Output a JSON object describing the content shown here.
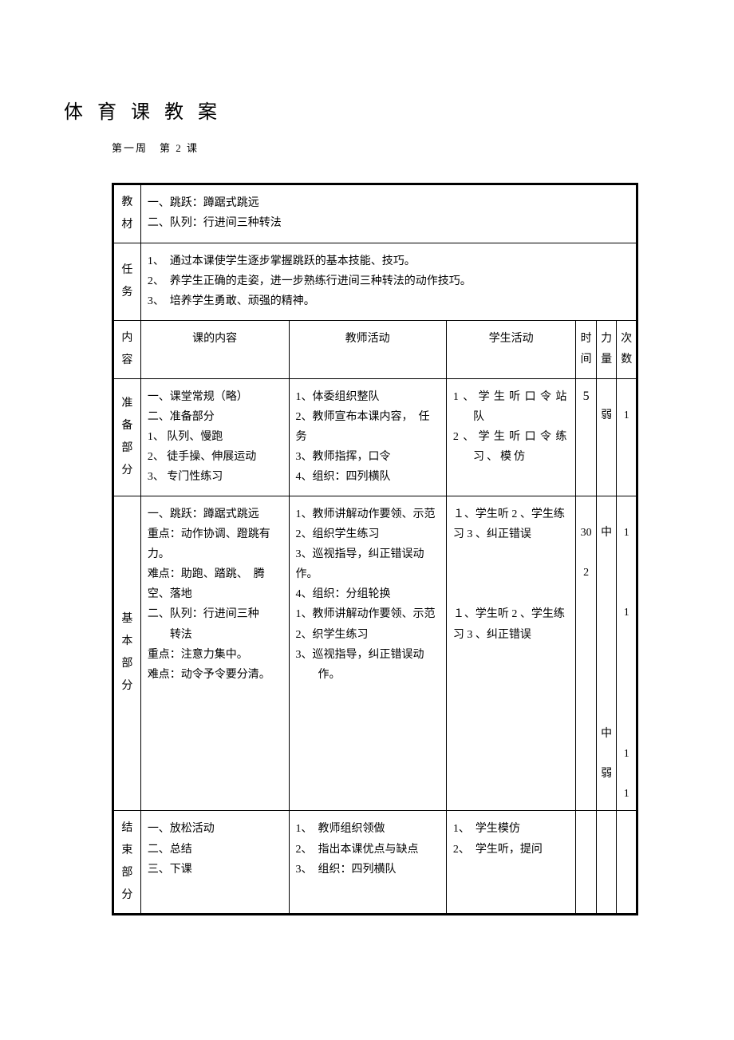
{
  "title": "体育课教案",
  "subtitle": "第一周　第 2 课",
  "rows": {
    "material": {
      "label": "教材",
      "content": "一、跳跃：蹲踞式跳远\n二、队列：行进间三种转法"
    },
    "task": {
      "label": "任务",
      "items": [
        "1、　通过本课使学生逐步掌握跳跃的基本技能、技巧。",
        "2、　养学生正确的走姿，进一步熟练行进间三种转法的动作技巧。",
        "3、　培养学生勇敢、顽强的精神。"
      ]
    },
    "header": {
      "label": "内容",
      "col1": "课的内容",
      "col2": "教师活动",
      "col3": "学生活动",
      "col4": "时间",
      "col5": "力量",
      "col6": "次数"
    },
    "prep": {
      "label": "准备部分",
      "content": "一、课堂常规（略）\n二、准备部分\n1、 队列、慢跑\n2、 徒手操、伸展运动\n3、 专门性练习",
      "teacher": "1、体委组织整队\n2、教师宣布本课内容，　任务\n3、教师指挥，口令\n4、组织：四列横队",
      "student": "1、学生听口令站队\n2、学生听口令练习、模仿",
      "time": "5",
      "force": "弱",
      "count": "1"
    },
    "main": {
      "label": "基本部分",
      "content_a": "一、跳跃：蹲踞式跳远\n重点：动作协调、蹬跳有力。\n难点：助跑、踏跳、　腾空、落地",
      "content_b": "二、队列：行进间三种转法\n重点：注意力集中。\n难点：动令予令要分清。",
      "teacher_a": "1、教师讲解动作要领、示范\n2、组织学生练习\n3、巡视指导，纠正错误动作。\n4、组织：分组轮换",
      "teacher_b": "1、教师讲解动作要领、示范\n2、织学生练习\n3、巡视指导，纠正错误动作。",
      "student_a": "１、学生听 2 、学生练习 3 、纠正错误",
      "student_b": "１、学生听 2 、学生练习 3 、纠正错误",
      "time": "30\n\n2",
      "force": "中\n\n\n\n\n\n\n\n\n\n\n中\n\n弱",
      "count": "1\n\n\n\n\n1\n\n\n\n\n\n\n\n1\n\n1"
    },
    "end": {
      "label": "结束部分",
      "content": "一、放松活动\n二、总结\n三、下课",
      "teacher": "1、　教师组织领做\n2、　指出本课优点与缺点\n3、　组织：四列横队",
      "student": "1、　学生模仿\n2、　学生听，提问"
    }
  }
}
